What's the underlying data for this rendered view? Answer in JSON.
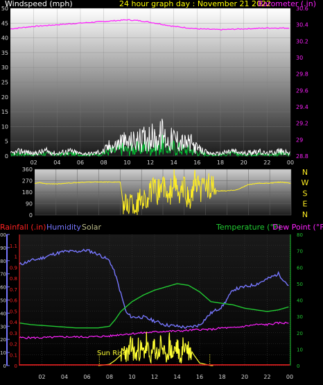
{
  "header": {
    "title": "24 hour graph day : November 21 2022",
    "wind_label": "Windspeed (mph)",
    "baro_label": "Barometer (.in)"
  },
  "colors": {
    "wind": "#ffffff",
    "gust": "#00cc33",
    "baro": "#ff22ff",
    "direction": "#ffee22",
    "rain": "#ff2222",
    "humidity": "#7777ff",
    "solar": "#ffff33",
    "temperature": "#22cc33",
    "dewpoint": "#ff22ff",
    "title": "#ffff00",
    "axis_text": "#d8d8d8"
  },
  "x_ticks": [
    "02",
    "04",
    "06",
    "08",
    "10",
    "12",
    "14",
    "16",
    "18",
    "20",
    "22",
    "00"
  ],
  "chart_data": [
    {
      "type": "line",
      "title": "24 hour graph day : November 21 2022",
      "ylabel": "Windspeed (mph)",
      "ylabel_right": "Barometer (.in)",
      "x_range": [
        0,
        24
      ],
      "ylim": [
        0,
        50
      ],
      "ylim_right": [
        28.8,
        30.6
      ],
      "y_ticks": [
        "0",
        "5",
        "10",
        "15",
        "20",
        "25",
        "30",
        "35",
        "40",
        "45",
        "50"
      ],
      "y_ticks_right": [
        "28.8",
        "29",
        "29.2",
        "29.4",
        "29.6",
        "29.8",
        "30",
        "30.2",
        "30.4",
        "30.6"
      ],
      "series": [
        {
          "name": "Windspeed",
          "axis": "left",
          "x": [
            0,
            1,
            2,
            3,
            4,
            5,
            6,
            7,
            8,
            8.5,
            9,
            9.5,
            10,
            10.5,
            11,
            11.5,
            12,
            12.5,
            13,
            13.5,
            14,
            14.5,
            15,
            15.5,
            16,
            16.5,
            17,
            18,
            19,
            20,
            21,
            22,
            23,
            24
          ],
          "y": [
            1,
            2,
            1,
            2,
            1,
            2,
            1,
            1,
            2,
            4,
            4,
            6,
            5,
            6,
            6,
            7,
            8,
            6,
            9,
            6,
            7,
            6,
            5,
            5,
            3,
            2,
            1,
            1,
            2,
            1,
            2,
            1,
            2,
            1
          ]
        },
        {
          "name": "Barometer",
          "axis": "right",
          "x": [
            0,
            2,
            4,
            6,
            8,
            10,
            11,
            12,
            14,
            16,
            18,
            20,
            22,
            24
          ],
          "y": [
            30.35,
            30.38,
            30.4,
            30.42,
            30.44,
            30.46,
            30.45,
            30.43,
            30.38,
            30.35,
            30.34,
            30.35,
            30.36,
            30.36
          ]
        }
      ]
    },
    {
      "type": "line",
      "x_range": [
        0,
        24
      ],
      "ylim": [
        0,
        360
      ],
      "y_ticks": [
        "0",
        "90",
        "180",
        "270",
        "360"
      ],
      "y_ticks_right": [
        "N",
        "W",
        "S",
        "E",
        "N"
      ],
      "series": [
        {
          "name": "Wind Direction",
          "x": [
            0,
            0.5,
            1,
            2,
            3,
            4,
            5,
            6,
            7,
            8,
            8.3,
            8.6,
            9,
            9.5,
            10,
            10.5,
            11,
            11.5,
            12,
            12.5,
            13,
            13.5,
            14,
            14.5,
            15,
            15.5,
            16,
            16.5,
            17,
            18,
            19,
            20,
            21,
            22,
            23,
            24
          ],
          "y": [
            250,
            255,
            245,
            245,
            250,
            255,
            260,
            260,
            260,
            260,
            80,
            70,
            110,
            60,
            150,
            120,
            200,
            180,
            250,
            100,
            280,
            140,
            220,
            90,
            260,
            180,
            250,
            220,
            190,
            190,
            200,
            240,
            250,
            250,
            260,
            250
          ]
        }
      ]
    },
    {
      "type": "line",
      "x_range": [
        0,
        24
      ],
      "ylim": [
        0,
        100
      ],
      "ylim_rain": [
        0,
        1.2
      ],
      "ylim_right": [
        0,
        80
      ],
      "legend": [
        "Rainfall (.in)",
        "Humidity",
        "Solar",
        "Temperature (°F)",
        "Dew Point (°F)"
      ],
      "y_ticks": [
        "0",
        "10",
        "20",
        "30",
        "40",
        "50",
        "60",
        "70",
        "80",
        "90",
        "100"
      ],
      "y_ticks_rain": [
        "0",
        "0.1",
        "0.2",
        "0.3",
        "0.4",
        "0.5",
        "0.6",
        "0.7",
        "0.8",
        "0.9",
        "1",
        "1.1"
      ],
      "y_ticks_right": [
        "0",
        "10",
        "20",
        "30",
        "40",
        "50",
        "60",
        "70",
        "80"
      ],
      "annotations": [
        "Sun Rise"
      ],
      "series": [
        {
          "name": "Humidity",
          "axis": "left",
          "x": [
            0,
            1,
            2,
            3,
            4,
            5,
            6,
            7,
            8,
            8.5,
            9,
            9.5,
            10,
            11,
            12,
            13,
            14,
            15,
            16,
            17,
            18,
            19,
            20,
            21,
            22,
            23,
            24
          ],
          "y": [
            77,
            80,
            82,
            85,
            87,
            87,
            88,
            85,
            80,
            70,
            55,
            40,
            37,
            37,
            34,
            31,
            30,
            29,
            31,
            40,
            45,
            58,
            60,
            62,
            66,
            70,
            60
          ]
        },
        {
          "name": "Temperature (°F)",
          "axis": "right",
          "x": [
            0,
            1,
            2,
            3,
            4,
            5,
            6,
            7,
            8,
            8.5,
            9,
            10,
            11,
            12,
            13,
            14,
            15,
            16,
            17,
            18,
            19,
            20,
            21,
            22,
            23,
            24
          ],
          "y": [
            26,
            25,
            24.5,
            24,
            23.5,
            23,
            23,
            23,
            24,
            28,
            33,
            39,
            43,
            46,
            48,
            50,
            49,
            45,
            39,
            38,
            37,
            35,
            34,
            33,
            34,
            36
          ]
        },
        {
          "name": "Dew Point (°F)",
          "axis": "right",
          "x": [
            0,
            2,
            4,
            6,
            8,
            9,
            10,
            11,
            12,
            13,
            14,
            15,
            16,
            17,
            18,
            19,
            20,
            21,
            22,
            23,
            24
          ],
          "y": [
            17,
            17,
            17.5,
            17.5,
            18,
            19,
            19.5,
            20,
            20.5,
            21,
            21,
            21.5,
            22,
            22,
            23,
            23,
            24,
            25,
            25,
            26,
            26
          ]
        },
        {
          "name": "Rainfall (.in)",
          "axis": "rain",
          "x": [
            0,
            24
          ],
          "y": [
            0,
            0
          ]
        },
        {
          "name": "Solar",
          "axis": "left",
          "x": [
            0,
            7,
            7.5,
            8,
            8.5,
            9,
            9.3,
            9.6,
            10,
            10.3,
            10.6,
            11,
            11.3,
            11.6,
            12,
            12.3,
            12.6,
            13,
            13.3,
            13.6,
            14,
            14.3,
            14.6,
            15,
            15.5,
            16,
            16.5,
            17,
            24
          ],
          "y": [
            0,
            0,
            0.5,
            1,
            4,
            8,
            15,
            10,
            19,
            8,
            17,
            12,
            21,
            5,
            18,
            9,
            22,
            6,
            20,
            10,
            19,
            4,
            21,
            15,
            8,
            2,
            1,
            0,
            0
          ]
        }
      ]
    }
  ],
  "lower": {
    "rain_label": "Rainfall (.in)",
    "humidity_label": "Humidity",
    "solar_label": "Solar",
    "temp_label": "Temperature (°F)",
    "dew_label": "Dew Point (°F)",
    "sunrise_label": "Sun Rise"
  }
}
